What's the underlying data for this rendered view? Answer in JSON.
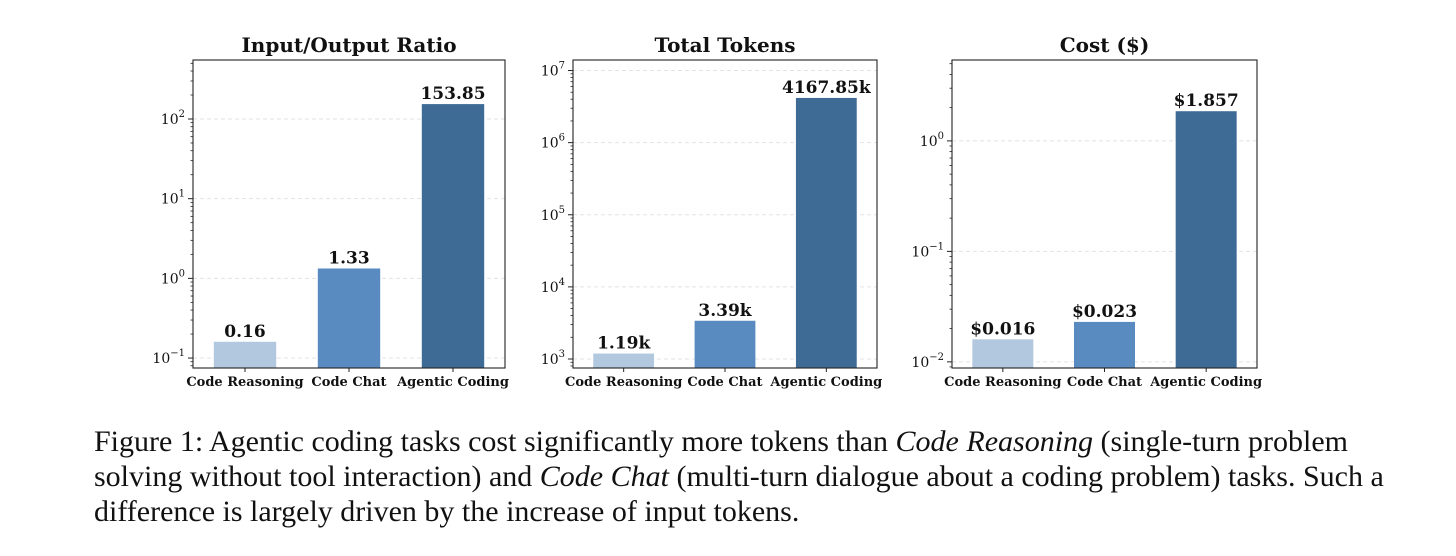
{
  "chart_data": [
    {
      "type": "bar",
      "title": "Input/Output Ratio",
      "scale": "log",
      "grid": true,
      "categories": [
        "Code Reasoning",
        "Code Chat",
        "Agentic Coding"
      ],
      "values": [
        0.16,
        1.33,
        153.85
      ],
      "value_labels": [
        "0.16",
        "1.33",
        "153.85"
      ],
      "ylim": [
        0.075,
        550
      ],
      "yticks": [
        {
          "base": "10",
          "exp": "−1",
          "value": 0.1
        },
        {
          "base": "10",
          "exp": "0",
          "value": 1
        },
        {
          "base": "10",
          "exp": "1",
          "value": 10
        },
        {
          "base": "10",
          "exp": "2",
          "value": 100
        }
      ],
      "colors": [
        "#b2c8de",
        "#5a8bc0",
        "#3e6b95"
      ]
    },
    {
      "type": "bar",
      "title": "Total Tokens",
      "scale": "log",
      "grid": true,
      "categories": [
        "Code Reasoning",
        "Code Chat",
        "Agentic Coding"
      ],
      "values": [
        1190,
        3390,
        4167850
      ],
      "value_labels": [
        "1.19k",
        "3.39k",
        "4167.85k"
      ],
      "ylim": [
        750,
        14000000
      ],
      "yticks": [
        {
          "base": "10",
          "exp": "3",
          "value": 1000
        },
        {
          "base": "10",
          "exp": "4",
          "value": 10000
        },
        {
          "base": "10",
          "exp": "5",
          "value": 100000
        },
        {
          "base": "10",
          "exp": "6",
          "value": 1000000
        },
        {
          "base": "10",
          "exp": "7",
          "value": 10000000
        }
      ],
      "colors": [
        "#b2c8de",
        "#5a8bc0",
        "#3e6b95"
      ]
    },
    {
      "type": "bar",
      "title": "Cost ($)",
      "scale": "log",
      "grid": true,
      "categories": [
        "Code Reasoning",
        "Code Chat",
        "Agentic Coding"
      ],
      "values": [
        0.016,
        0.023,
        1.857
      ],
      "value_labels": [
        "$0.016",
        "$0.023",
        "$1.857"
      ],
      "ylim": [
        0.0088,
        5.4
      ],
      "yticks": [
        {
          "base": "10",
          "exp": "−2",
          "value": 0.01
        },
        {
          "base": "10",
          "exp": "−1",
          "value": 0.1
        },
        {
          "base": "10",
          "exp": "0",
          "value": 1
        }
      ],
      "colors": [
        "#b2c8de",
        "#5a8bc0",
        "#3e6b95"
      ]
    }
  ],
  "caption": {
    "part1": "Figure 1: Agentic coding tasks cost significantly more tokens than ",
    "em1": "Code Reasoning",
    "part2": " (single-turn problem solving without tool interaction) and ",
    "em2": "Code Chat",
    "part3": " (multi-turn dialogue about a coding problem) tasks. Such a difference is largely driven by the increase of input tokens."
  }
}
